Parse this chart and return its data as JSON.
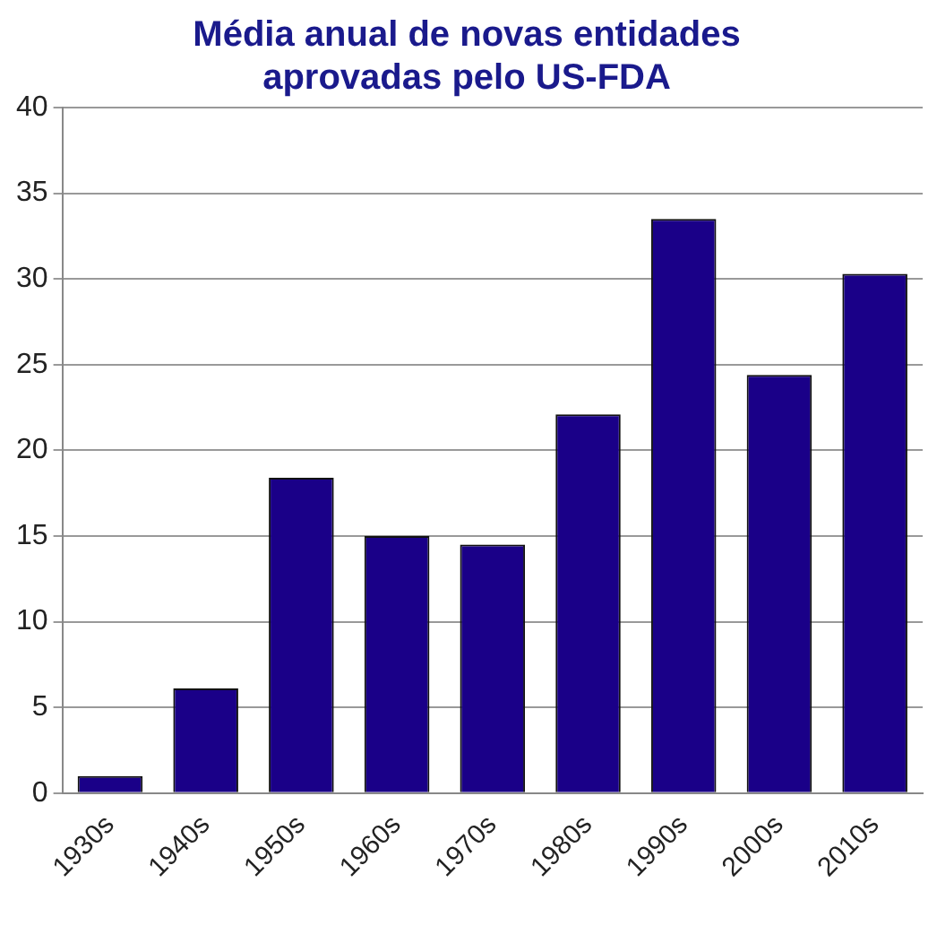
{
  "chart_data": {
    "type": "bar",
    "title": [
      "Média anual de novas entidades",
      "aprovadas pelo US-FDA"
    ],
    "categories": [
      "1930s",
      "1940s",
      "1950s",
      "1960s",
      "1970s",
      "1980s",
      "1990s",
      "2000s",
      "2010s"
    ],
    "values": [
      1.0,
      6.1,
      18.4,
      15.0,
      14.5,
      22.1,
      33.5,
      24.4,
      30.3
    ],
    "color": "#1a0088",
    "ylim": [
      0,
      40
    ],
    "yticks": [
      0,
      5,
      10,
      15,
      20,
      25,
      30,
      35,
      40
    ],
    "grid": "y",
    "legend": false
  }
}
